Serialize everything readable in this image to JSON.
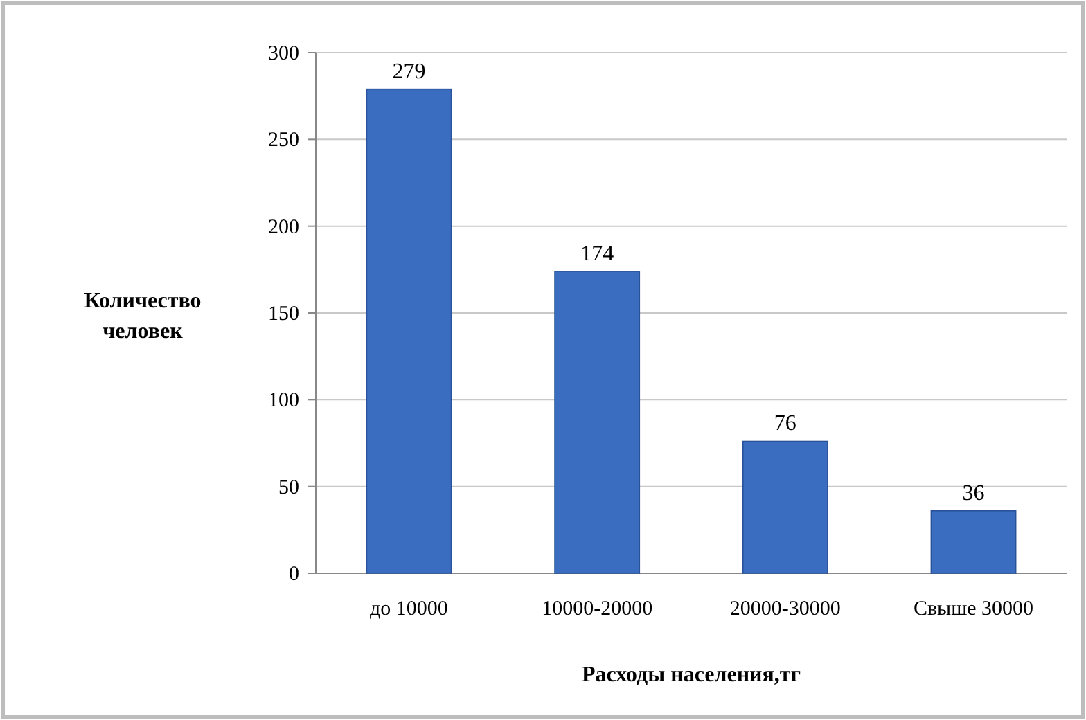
{
  "chart_data": {
    "type": "bar",
    "categories": [
      "до 10000",
      "10000-20000",
      "20000-30000",
      "Свыше 30000"
    ],
    "values": [
      279,
      174,
      76,
      36
    ],
    "color": "#3a6cc0",
    "xlabel": "Расходы населения,тг",
    "ylabel": "Количество человек",
    "ylim": [
      0,
      300
    ],
    "yticks": [
      0,
      50,
      100,
      150,
      200,
      250,
      300
    ],
    "grid": "y",
    "data_labels": true
  }
}
